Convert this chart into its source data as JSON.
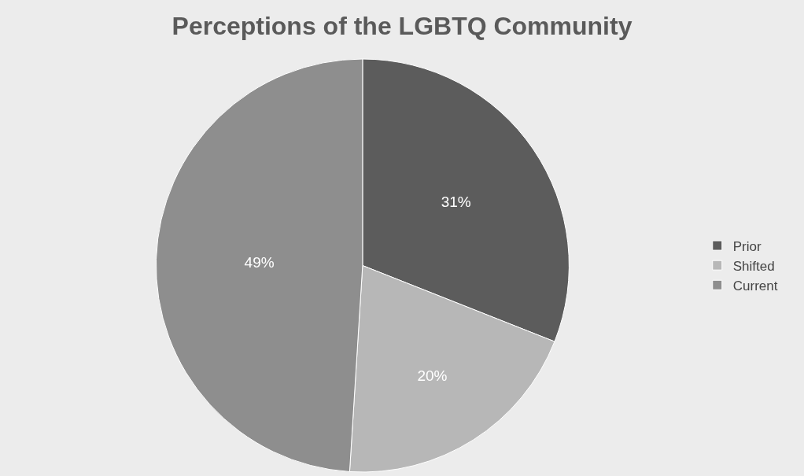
{
  "chart_data": {
    "type": "pie",
    "title": "Perceptions of the LGBTQ Community",
    "categories": [
      "Prior",
      "Shifted",
      "Current"
    ],
    "values": [
      31,
      20,
      49
    ],
    "colors": [
      "#5c5c5c",
      "#b7b7b7",
      "#8e8e8e"
    ],
    "value_labels": [
      "31%",
      "20%",
      "49%"
    ],
    "legend": "right"
  }
}
